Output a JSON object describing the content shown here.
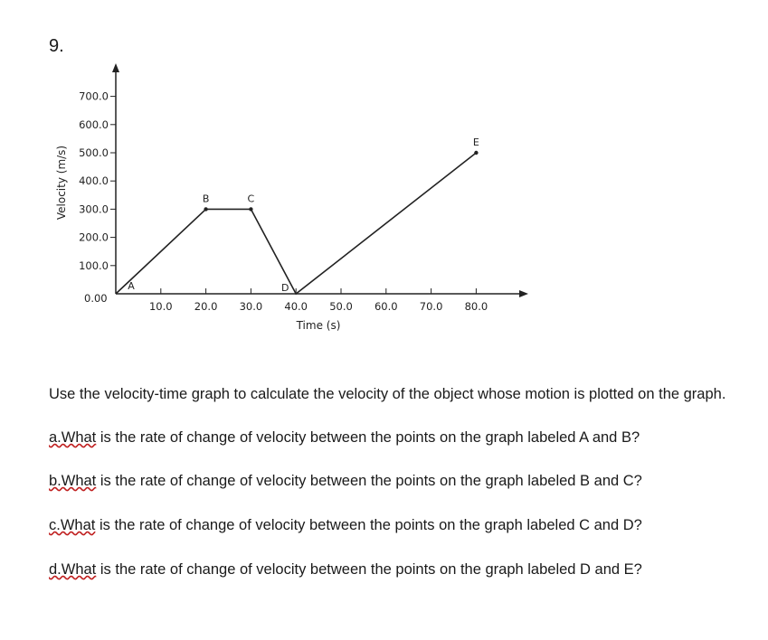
{
  "question_number": "9.",
  "chart_data": {
    "type": "line",
    "xlabel": "Time (s)",
    "ylabel": "Velocity (m/s)",
    "xlim": [
      0,
      88
    ],
    "ylim": [
      0,
      780
    ],
    "x_ticks": [
      "10.0",
      "20.0",
      "30.0",
      "40.0",
      "50.0",
      "60.0",
      "70.0",
      "80.0"
    ],
    "x_tick_values": [
      10,
      20,
      30,
      40,
      50,
      60,
      70,
      80
    ],
    "y_ticks": [
      "100.0",
      "200.0",
      "300.0",
      "400.0",
      "500.0",
      "600.0",
      "700.0"
    ],
    "y_tick_values": [
      100,
      200,
      300,
      400,
      500,
      600,
      700
    ],
    "origin_label": "0.00",
    "points": [
      {
        "label": "A",
        "x": 0,
        "y": 0
      },
      {
        "label": "B",
        "x": 20,
        "y": 300
      },
      {
        "label": "C",
        "x": 30,
        "y": 300
      },
      {
        "label": "D",
        "x": 40,
        "y": 0
      },
      {
        "label": "E",
        "x": 80,
        "y": 500
      }
    ]
  },
  "prompt": "Use the velocity-time graph to calculate the velocity of the object whose motion is plotted on the graph.",
  "questions": [
    {
      "label": "a.What",
      "text": " is the rate of change of velocity between the points on the graph labeled A and B?"
    },
    {
      "label": "b.What",
      "text": " is the rate of change of velocity between the points on the graph labeled B and C?"
    },
    {
      "label": "c.What",
      "text": " is the rate of change of velocity between the points on the graph labeled C and D?"
    },
    {
      "label": "d.What",
      "text": " is the rate of change of velocity between the points on the graph labeled D and E?"
    }
  ]
}
